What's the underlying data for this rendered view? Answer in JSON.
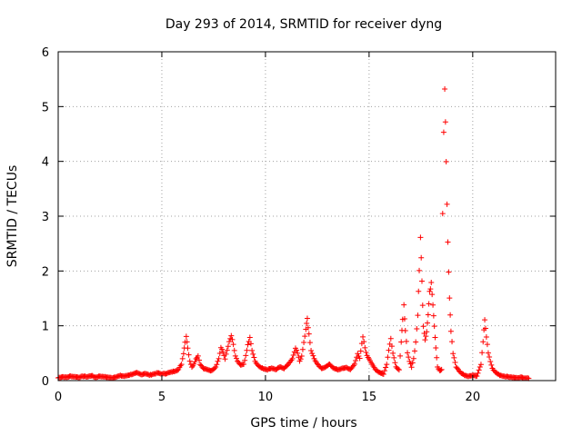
{
  "chart_data": {
    "type": "scatter",
    "title": "Day 293 of 2014, SRMTID for receiver dyng",
    "xlabel": "GPS time / hours",
    "ylabel": "SRMTID / TECUs",
    "xlim": [
      0,
      24
    ],
    "ylim": [
      0,
      6
    ],
    "xticks": [
      0,
      5,
      10,
      15,
      20
    ],
    "yticks": [
      0,
      1,
      2,
      3,
      4,
      5,
      6
    ],
    "xtick_labels": [
      "0",
      "5",
      "10",
      "15",
      "20"
    ],
    "ytick_labels": [
      "0",
      "1",
      "2",
      "3",
      "4",
      "5",
      "6"
    ],
    "grid": true,
    "marker": "plus",
    "color": "#ff0000",
    "series": [
      {
        "name": "SRMTID",
        "points": [
          [
            0.0,
            0.05
          ],
          [
            0.2,
            0.07
          ],
          [
            0.4,
            0.06
          ],
          [
            0.6,
            0.08
          ],
          [
            0.8,
            0.07
          ],
          [
            1.0,
            0.06
          ],
          [
            1.2,
            0.08
          ],
          [
            1.4,
            0.07
          ],
          [
            1.6,
            0.09
          ],
          [
            1.8,
            0.06
          ],
          [
            2.0,
            0.08
          ],
          [
            2.2,
            0.07
          ],
          [
            2.4,
            0.06
          ],
          [
            2.6,
            0.05
          ],
          [
            2.8,
            0.07
          ],
          [
            3.0,
            0.09
          ],
          [
            3.2,
            0.08
          ],
          [
            3.4,
            0.1
          ],
          [
            3.6,
            0.12
          ],
          [
            3.8,
            0.14
          ],
          [
            4.0,
            0.11
          ],
          [
            4.2,
            0.13
          ],
          [
            4.4,
            0.1
          ],
          [
            4.6,
            0.12
          ],
          [
            4.8,
            0.14
          ],
          [
            5.0,
            0.12
          ],
          [
            5.2,
            0.13
          ],
          [
            5.4,
            0.15
          ],
          [
            5.6,
            0.17
          ],
          [
            5.8,
            0.2
          ],
          [
            5.95,
            0.3
          ],
          [
            6.05,
            0.5
          ],
          [
            6.12,
            0.7
          ],
          [
            6.18,
            0.82
          ],
          [
            6.25,
            0.6
          ],
          [
            6.35,
            0.35
          ],
          [
            6.45,
            0.25
          ],
          [
            6.55,
            0.3
          ],
          [
            6.65,
            0.4
          ],
          [
            6.75,
            0.45
          ],
          [
            6.85,
            0.3
          ],
          [
            7.0,
            0.22
          ],
          [
            7.2,
            0.2
          ],
          [
            7.4,
            0.18
          ],
          [
            7.6,
            0.25
          ],
          [
            7.75,
            0.4
          ],
          [
            7.85,
            0.6
          ],
          [
            7.95,
            0.52
          ],
          [
            8.05,
            0.4
          ],
          [
            8.15,
            0.55
          ],
          [
            8.25,
            0.7
          ],
          [
            8.35,
            0.82
          ],
          [
            8.45,
            0.65
          ],
          [
            8.55,
            0.45
          ],
          [
            8.65,
            0.35
          ],
          [
            8.8,
            0.28
          ],
          [
            8.95,
            0.3
          ],
          [
            9.05,
            0.45
          ],
          [
            9.15,
            0.65
          ],
          [
            9.25,
            0.78
          ],
          [
            9.35,
            0.55
          ],
          [
            9.5,
            0.35
          ],
          [
            9.7,
            0.25
          ],
          [
            9.9,
            0.22
          ],
          [
            10.1,
            0.2
          ],
          [
            10.3,
            0.23
          ],
          [
            10.5,
            0.2
          ],
          [
            10.7,
            0.25
          ],
          [
            10.9,
            0.22
          ],
          [
            11.1,
            0.3
          ],
          [
            11.3,
            0.4
          ],
          [
            11.45,
            0.6
          ],
          [
            11.55,
            0.5
          ],
          [
            11.65,
            0.35
          ],
          [
            11.75,
            0.45
          ],
          [
            11.85,
            0.7
          ],
          [
            11.95,
            0.95
          ],
          [
            12.02,
            1.12
          ],
          [
            12.1,
            0.85
          ],
          [
            12.2,
            0.55
          ],
          [
            12.35,
            0.4
          ],
          [
            12.5,
            0.3
          ],
          [
            12.7,
            0.22
          ],
          [
            12.9,
            0.25
          ],
          [
            13.1,
            0.3
          ],
          [
            13.3,
            0.22
          ],
          [
            13.5,
            0.2
          ],
          [
            13.7,
            0.22
          ],
          [
            13.9,
            0.24
          ],
          [
            14.1,
            0.2
          ],
          [
            14.3,
            0.3
          ],
          [
            14.45,
            0.5
          ],
          [
            14.55,
            0.4
          ],
          [
            14.7,
            0.8
          ],
          [
            14.8,
            0.6
          ],
          [
            14.9,
            0.45
          ],
          [
            15.0,
            0.4
          ],
          [
            15.15,
            0.3
          ],
          [
            15.3,
            0.2
          ],
          [
            15.5,
            0.15
          ],
          [
            15.7,
            0.12
          ],
          [
            15.85,
            0.3
          ],
          [
            15.95,
            0.55
          ],
          [
            16.05,
            0.78
          ],
          [
            16.15,
            0.5
          ],
          [
            16.3,
            0.25
          ],
          [
            16.45,
            0.2
          ],
          [
            16.55,
            0.7
          ],
          [
            16.62,
            1.1
          ],
          [
            16.68,
            1.4
          ],
          [
            16.75,
            0.9
          ],
          [
            16.85,
            0.5
          ],
          [
            16.95,
            0.35
          ],
          [
            17.05,
            0.25
          ],
          [
            17.15,
            0.4
          ],
          [
            17.25,
            0.7
          ],
          [
            17.35,
            1.2
          ],
          [
            17.42,
            2.0
          ],
          [
            17.48,
            2.65
          ],
          [
            17.55,
            1.8
          ],
          [
            17.62,
            1.0
          ],
          [
            17.7,
            0.75
          ],
          [
            17.78,
            0.9
          ],
          [
            17.85,
            1.2
          ],
          [
            17.92,
            1.6
          ],
          [
            18.0,
            1.8
          ],
          [
            18.08,
            1.4
          ],
          [
            18.15,
            1.0
          ],
          [
            18.22,
            0.6
          ],
          [
            18.3,
            0.25
          ],
          [
            18.4,
            0.18
          ],
          [
            18.5,
            0.2
          ],
          [
            18.55,
            3.0
          ],
          [
            18.6,
            4.5
          ],
          [
            18.65,
            5.35
          ],
          [
            18.72,
            4.0
          ],
          [
            18.8,
            2.5
          ],
          [
            18.88,
            1.5
          ],
          [
            18.95,
            0.9
          ],
          [
            19.05,
            0.5
          ],
          [
            19.2,
            0.25
          ],
          [
            19.4,
            0.15
          ],
          [
            19.6,
            0.1
          ],
          [
            19.8,
            0.08
          ],
          [
            20.0,
            0.1
          ],
          [
            20.2,
            0.08
          ],
          [
            20.4,
            0.3
          ],
          [
            20.5,
            0.7
          ],
          [
            20.58,
            1.12
          ],
          [
            20.66,
            0.8
          ],
          [
            20.75,
            0.5
          ],
          [
            20.85,
            0.35
          ],
          [
            20.95,
            0.22
          ],
          [
            21.1,
            0.15
          ],
          [
            21.3,
            0.1
          ],
          [
            21.5,
            0.08
          ],
          [
            21.7,
            0.07
          ],
          [
            21.9,
            0.06
          ],
          [
            22.1,
            0.05
          ],
          [
            22.3,
            0.06
          ],
          [
            22.5,
            0.05
          ],
          [
            22.7,
            0.04
          ]
        ]
      }
    ]
  }
}
